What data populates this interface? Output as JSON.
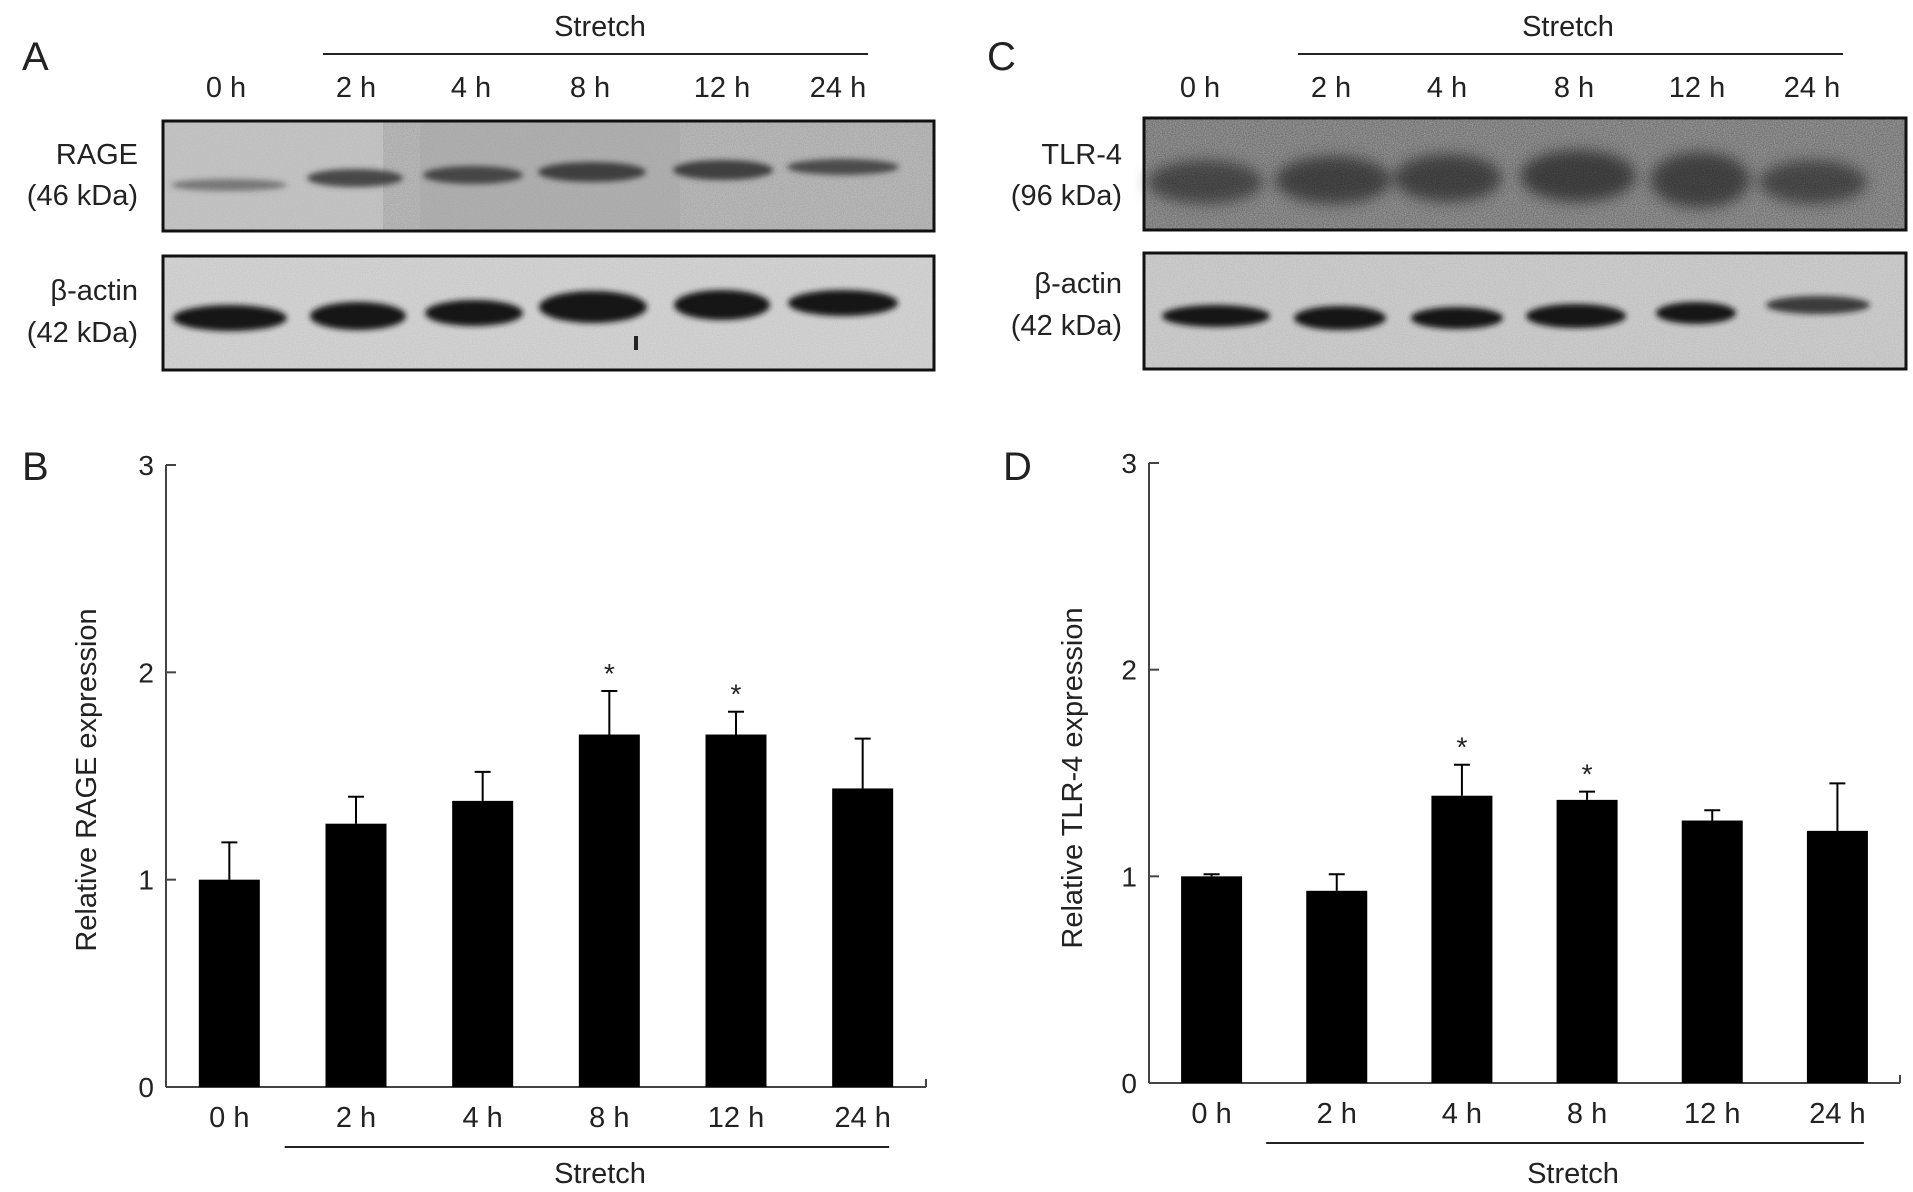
{
  "lanes": [
    "0 h",
    "2 h",
    "4 h",
    "8 h",
    "12 h",
    "24 h"
  ],
  "stretch_label": "Stretch",
  "panels": {
    "A": {
      "letter": "A",
      "protein_name": "RAGE",
      "protein_kda": "(46 kDa)",
      "control_name": "β-actin",
      "control_kda": "(42 kDa)"
    },
    "B": {
      "letter": "B"
    },
    "C": {
      "letter": "C",
      "protein_name": "TLR-4",
      "protein_kda": "(96 kDa)",
      "control_name": "β-actin",
      "control_kda": "(42 kDa)"
    },
    "D": {
      "letter": "D"
    }
  },
  "chart_data": [
    {
      "panel": "B",
      "type": "bar",
      "categories": [
        "0 h",
        "2 h",
        "4 h",
        "8 h",
        "12 h",
        "24 h"
      ],
      "values": [
        1.0,
        1.27,
        1.38,
        1.7,
        1.7,
        1.44
      ],
      "errors": [
        0.18,
        0.13,
        0.14,
        0.21,
        0.11,
        0.24
      ],
      "significant": [
        false,
        false,
        false,
        true,
        true,
        false
      ],
      "significance_marker": "*",
      "title": "",
      "xlabel": "Stretch",
      "ylabel": "Relative RAGE expression",
      "ylim": [
        0,
        3
      ],
      "yticks": [
        0,
        1,
        2,
        3
      ],
      "grid": false,
      "bar_color": "#000000"
    },
    {
      "panel": "D",
      "type": "bar",
      "categories": [
        "0 h",
        "2 h",
        "4 h",
        "8 h",
        "12 h",
        "24 h"
      ],
      "values": [
        1.0,
        0.93,
        1.39,
        1.37,
        1.27,
        1.22
      ],
      "errors": [
        0.01,
        0.08,
        0.15,
        0.04,
        0.05,
        0.23
      ],
      "significant": [
        false,
        false,
        true,
        true,
        false,
        false
      ],
      "significance_marker": "*",
      "title": "",
      "xlabel": "Stretch",
      "ylabel": "Relative TLR-4 expression",
      "ylim": [
        0,
        3
      ],
      "yticks": [
        0,
        1,
        2,
        3
      ],
      "grid": false,
      "bar_color": "#000000"
    }
  ]
}
